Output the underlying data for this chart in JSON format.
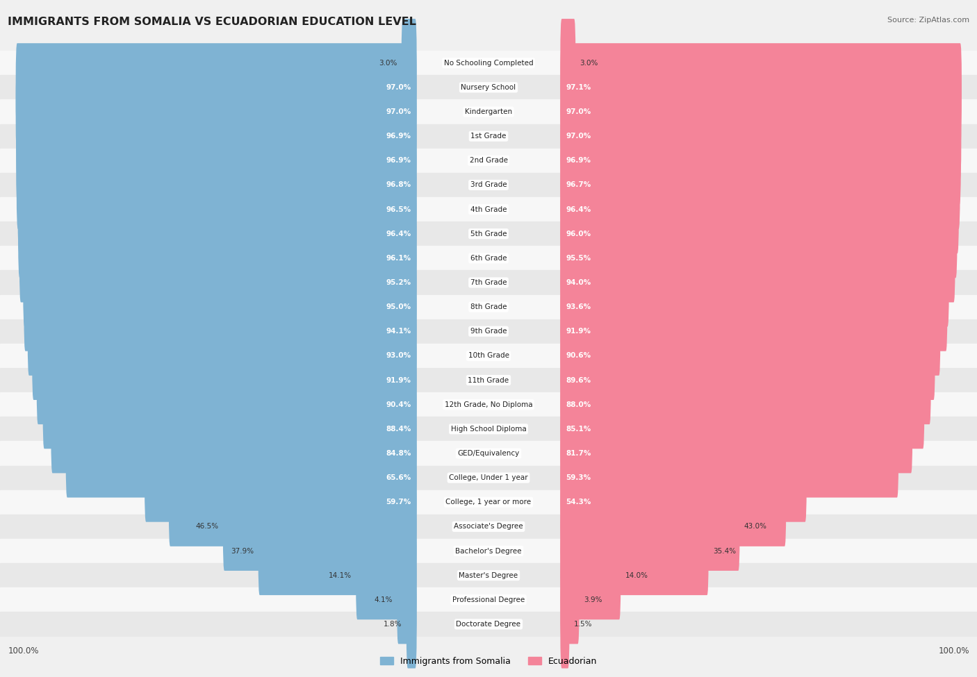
{
  "title": "IMMIGRANTS FROM SOMALIA VS ECUADORIAN EDUCATION LEVEL",
  "source": "Source: ZipAtlas.com",
  "categories": [
    "No Schooling Completed",
    "Nursery School",
    "Kindergarten",
    "1st Grade",
    "2nd Grade",
    "3rd Grade",
    "4th Grade",
    "5th Grade",
    "6th Grade",
    "7th Grade",
    "8th Grade",
    "9th Grade",
    "10th Grade",
    "11th Grade",
    "12th Grade, No Diploma",
    "High School Diploma",
    "GED/Equivalency",
    "College, Under 1 year",
    "College, 1 year or more",
    "Associate's Degree",
    "Bachelor's Degree",
    "Master's Degree",
    "Professional Degree",
    "Doctorate Degree"
  ],
  "somalia_values": [
    3.0,
    97.0,
    97.0,
    96.9,
    96.9,
    96.8,
    96.5,
    96.4,
    96.1,
    95.2,
    95.0,
    94.1,
    93.0,
    91.9,
    90.4,
    88.4,
    84.8,
    65.6,
    59.7,
    46.5,
    37.9,
    14.1,
    4.1,
    1.8
  ],
  "ecuador_values": [
    3.0,
    97.1,
    97.0,
    97.0,
    96.9,
    96.7,
    96.4,
    96.0,
    95.5,
    94.0,
    93.6,
    91.9,
    90.6,
    89.6,
    88.0,
    85.1,
    81.7,
    59.3,
    54.3,
    43.0,
    35.4,
    14.0,
    3.9,
    1.5
  ],
  "somalia_color": "#7fb3d3",
  "ecuador_color": "#f48499",
  "background_color": "#f0f0f0",
  "row_bg_even": "#f7f7f7",
  "row_bg_odd": "#e8e8e8",
  "axis_label_left": "100.0%",
  "axis_label_right": "100.0%",
  "legend_somalia": "Immigrants from Somalia",
  "legend_ecuador": "Ecuadorian",
  "max_val": 100.0,
  "total_width": 1000,
  "label_zone_half": 75,
  "bar_max_half": 420,
  "value_fontsize": 7.5,
  "cat_fontsize": 7.5
}
